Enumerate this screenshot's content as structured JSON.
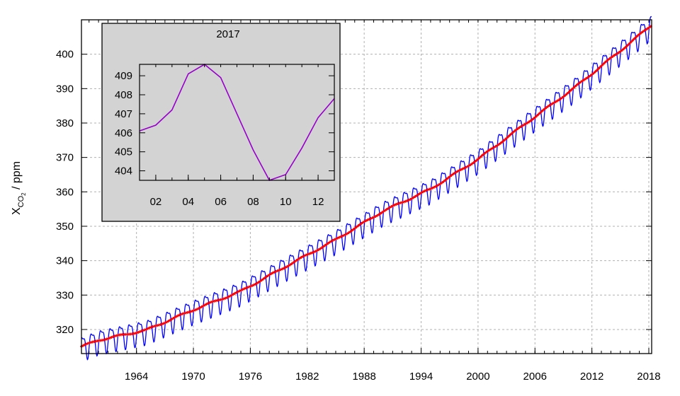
{
  "chart_data": [
    {
      "type": "line",
      "title": "",
      "xlabel": "",
      "ylabel": {
        "main": "X",
        "sub": "CO",
        "subsub": "2",
        "unit": " / ppm"
      },
      "xlim": [
        1958.2,
        2018.3
      ],
      "ylim": [
        313,
        410
      ],
      "x_ticks": [
        1964,
        1970,
        1976,
        1982,
        1988,
        1994,
        2000,
        2006,
        2012,
        2018
      ],
      "x_tick_labels": [
        "1964",
        "1970",
        "1976",
        "1982",
        "1988",
        "1994",
        "2000",
        "2006",
        "2012",
        "2018"
      ],
      "x_minor_step": 1,
      "y_ticks": [
        320,
        330,
        340,
        350,
        360,
        370,
        380,
        390,
        400
      ],
      "y_tick_labels": [
        "320",
        "330",
        "340",
        "350",
        "360",
        "370",
        "380",
        "390",
        "400"
      ],
      "grid": true,
      "series": [
        {
          "role": "monthly",
          "color": "#0000ff",
          "x_start": 1958.2,
          "x_end": 2018.3,
          "seasonal_amplitude_ppm": 3.3,
          "trend_anchors": {
            "x": [
              1958.2,
              1960,
              1965,
              1970,
              1975,
              1980,
              1985,
              1990,
              1995,
              2000,
              2005,
              2010,
              2015,
              2018.3
            ],
            "y": [
              315.0,
              316.9,
              319.8,
              325.7,
              331.1,
              338.7,
              346.1,
              354.4,
              360.8,
              369.5,
              379.8,
              389.9,
              401.0,
              408.5
            ]
          }
        },
        {
          "role": "trend",
          "color": "#ff0000",
          "marker_color": "#ff0000",
          "x_start": 1958.2,
          "x_end": 2018.3
        }
      ]
    },
    {
      "type": "line",
      "title": "2017",
      "xlabel": "",
      "ylabel": "",
      "xlim": [
        1,
        13
      ],
      "ylim": [
        403.5,
        409.6
      ],
      "x_ticks": [
        2,
        4,
        6,
        8,
        10,
        12
      ],
      "x_tick_labels": [
        "02",
        "04",
        "06",
        "08",
        "10",
        "12"
      ],
      "x_minor_step": 1,
      "y_ticks": [
        404,
        405,
        406,
        407,
        408,
        409
      ],
      "y_tick_labels": [
        "404",
        "405",
        "406",
        "407",
        "408",
        "409"
      ],
      "background": "#d3d3d3",
      "grid": false,
      "series": [
        {
          "color": "#9900cc",
          "x": [
            1,
            2,
            3,
            4,
            5,
            6,
            7,
            8,
            9,
            10,
            11,
            12,
            13
          ],
          "values": [
            406.1,
            406.4,
            407.2,
            409.1,
            409.6,
            408.9,
            407.0,
            405.1,
            403.5,
            403.8,
            405.2,
            406.8,
            407.8
          ]
        }
      ]
    }
  ]
}
